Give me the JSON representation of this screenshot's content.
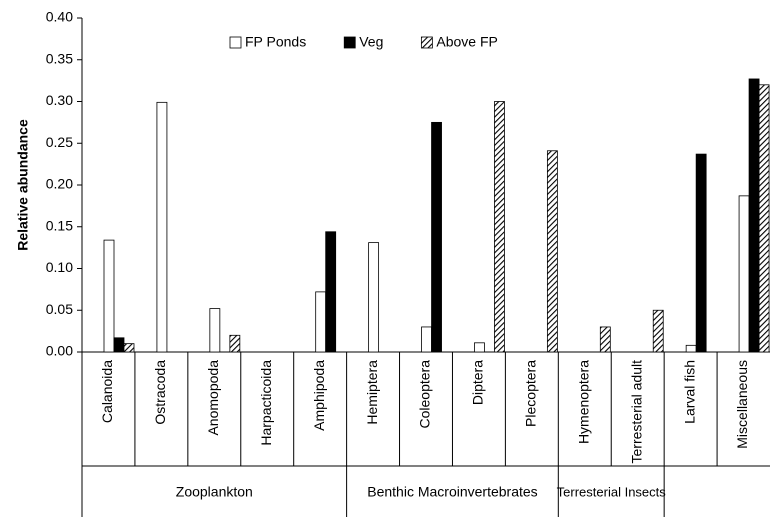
{
  "chart_data": {
    "type": "bar",
    "y_label": "Relative abundance",
    "categories": [
      "Calanoida",
      "Ostracoda",
      "Anomopoda",
      "Harpacticoida",
      "Amphipoda",
      "Hemiptera",
      "Coleoptera",
      "Diptera",
      "Plecoptera",
      "Hymenoptera",
      "Terresterial adult",
      "Larval fish",
      "Miscellaneous"
    ],
    "groups": [
      {
        "label": "Zooplankton",
        "size": 5
      },
      {
        "label": "Benthic Macroinvertebrates",
        "size": 4
      },
      {
        "label": "Terresterial Insects",
        "size": 2
      },
      {
        "label": null,
        "size": 2
      }
    ],
    "series": [
      {
        "name": "FP Ponds",
        "color": "#ffffff",
        "values": [
          0.134,
          0.299,
          0.052,
          0,
          0.072,
          0.131,
          0.03,
          0.011,
          0,
          0,
          0,
          0.008,
          0.187
        ]
      },
      {
        "name": "Veg",
        "color": "#000000",
        "values": [
          0.017,
          0,
          0,
          0,
          0.144,
          0,
          0.275,
          0,
          0,
          0,
          0,
          0.237,
          0.327
        ]
      },
      {
        "name": "Above FP",
        "color": "hatch",
        "values": [
          0.01,
          0,
          0.02,
          0,
          0,
          0,
          0,
          0.3,
          0.241,
          0.03,
          0.05,
          0,
          0.32
        ]
      }
    ],
    "ylim": [
      0,
      0.4
    ],
    "yticks": [
      {
        "value": 0,
        "label": "0.00"
      },
      {
        "value": 0.05,
        "label": "0.05"
      },
      {
        "value": 0.1,
        "label": "0.10"
      },
      {
        "value": 0.15,
        "label": "0.15"
      },
      {
        "value": 0.2,
        "label": "0.20"
      },
      {
        "value": 0.25,
        "label": "0.25"
      },
      {
        "value": 0.3,
        "label": "0.30"
      },
      {
        "value": 0.35,
        "label": "0.35"
      },
      {
        "value": 0.4,
        "label": "0.40"
      }
    ],
    "legend": "top",
    "grid": false
  }
}
